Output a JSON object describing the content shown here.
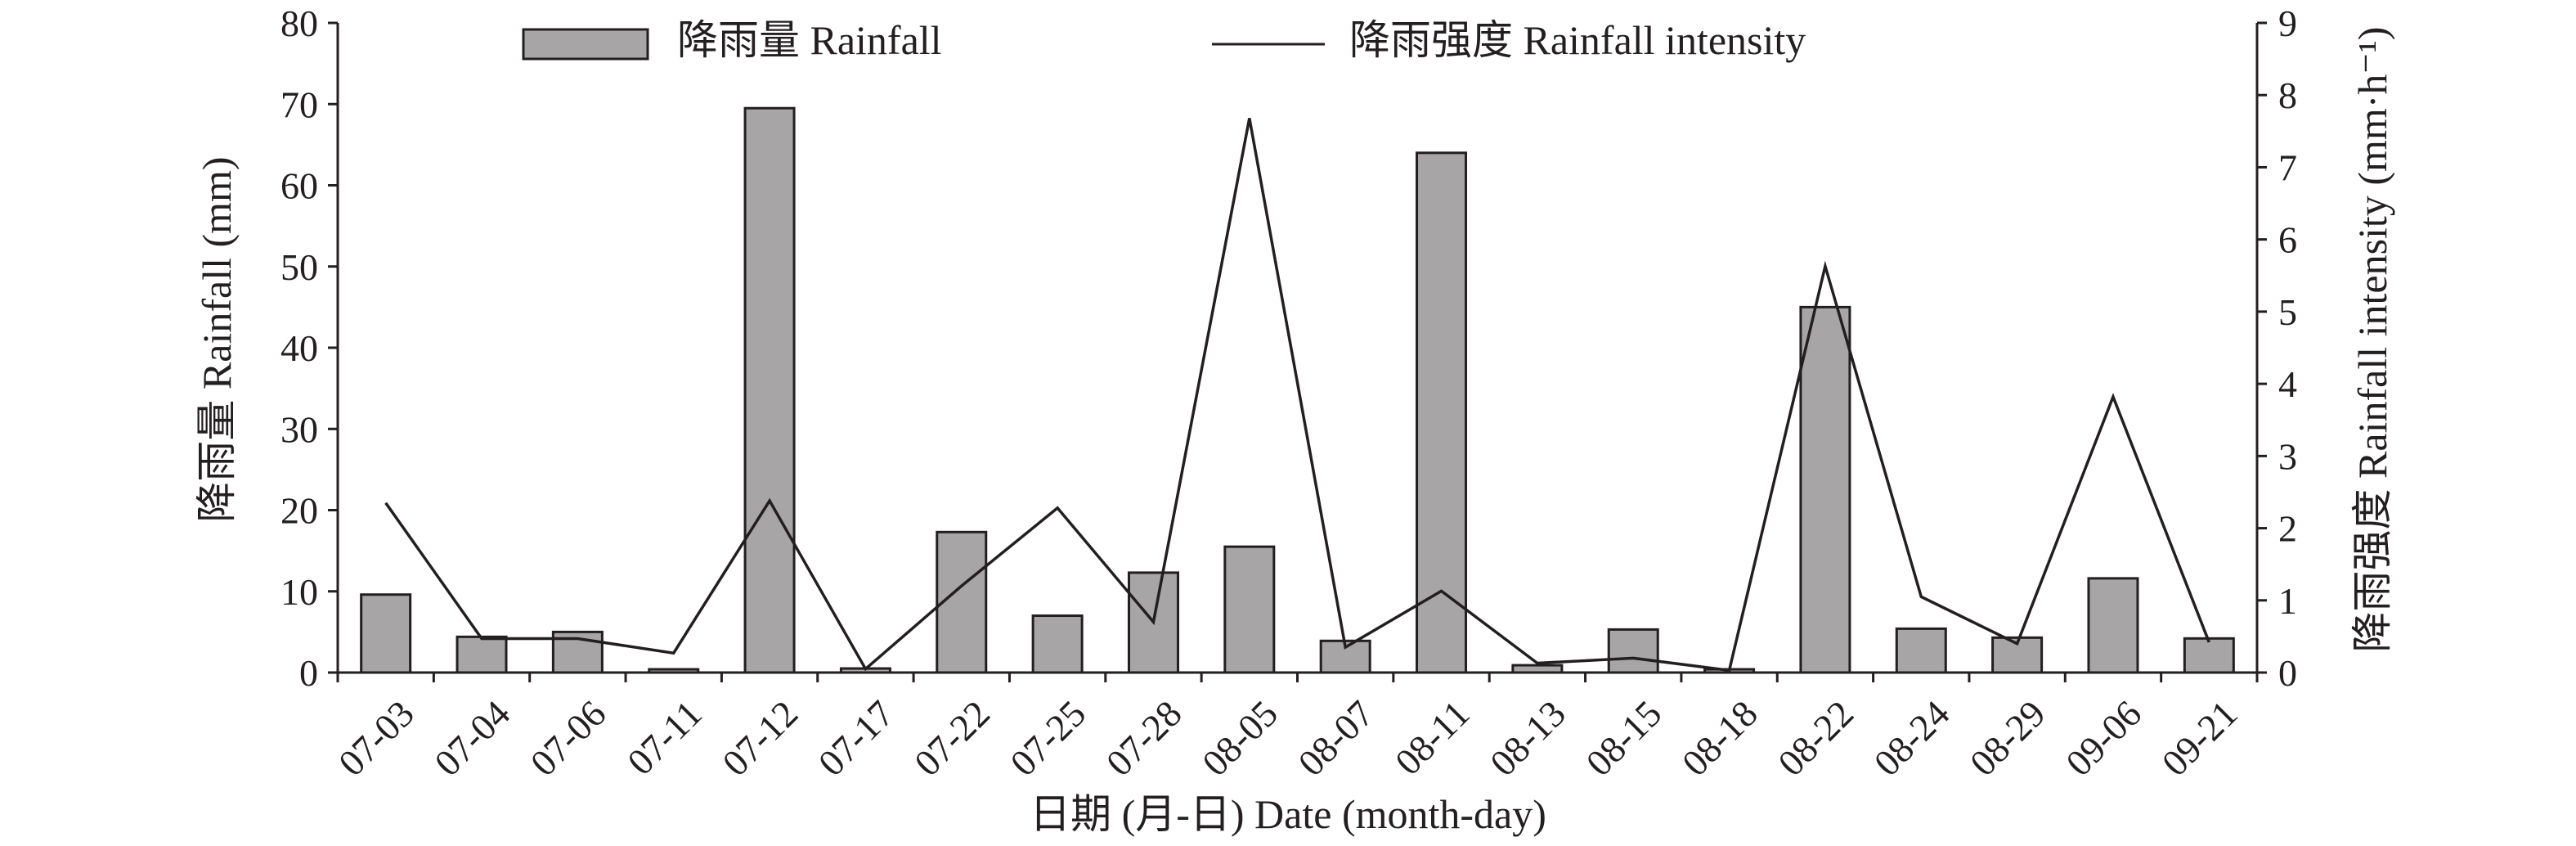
{
  "chart_data": {
    "type": "bar",
    "categories": [
      "07-03",
      "07-04",
      "07-06",
      "07-11",
      "07-12",
      "07-17",
      "07-22",
      "07-25",
      "07-28",
      "08-05",
      "08-07",
      "08-11",
      "08-13",
      "08-15",
      "08-18",
      "08-22",
      "08-24",
      "08-29",
      "09-06",
      "09-21"
    ],
    "series": [
      {
        "name": "降雨量 Rainfall",
        "type": "bar",
        "axis": "left",
        "values": [
          9.6,
          4.4,
          5.0,
          0.4,
          69.5,
          0.5,
          17.3,
          7.0,
          12.3,
          15.5,
          3.9,
          64.0,
          0.9,
          5.3,
          0.4,
          45.0,
          5.4,
          4.3,
          11.6,
          4.2
        ]
      },
      {
        "name": "降雨强度 Rainfall intensity",
        "type": "line",
        "axis": "right",
        "values": [
          2.35,
          0.47,
          0.47,
          0.27,
          2.38,
          0.05,
          1.2,
          2.28,
          0.7,
          7.68,
          0.35,
          1.13,
          0.13,
          0.2,
          0.03,
          5.63,
          1.05,
          0.4,
          3.82,
          0.42
        ]
      }
    ],
    "xlabel": "日期 (月-日) Date (month-day)",
    "ylabel": "降雨量 Rainfall (mm)",
    "y2label": "降雨强度 Rainfall intensity (mm·h⁻¹)",
    "ylim": [
      0,
      80
    ],
    "y2lim": [
      0,
      9
    ],
    "yticks": [
      "0",
      "10",
      "20",
      "30",
      "40",
      "50",
      "60",
      "70",
      "80"
    ],
    "y2ticks": [
      "0",
      "1",
      "2",
      "3",
      "4",
      "5",
      "6",
      "7",
      "8",
      "9"
    ],
    "grid": false,
    "legend_position": "top",
    "colors": {
      "bar_fill": "#a7a5a6",
      "bar_stroke": "#231f20",
      "line": "#231f20",
      "axis": "#231f20"
    }
  }
}
